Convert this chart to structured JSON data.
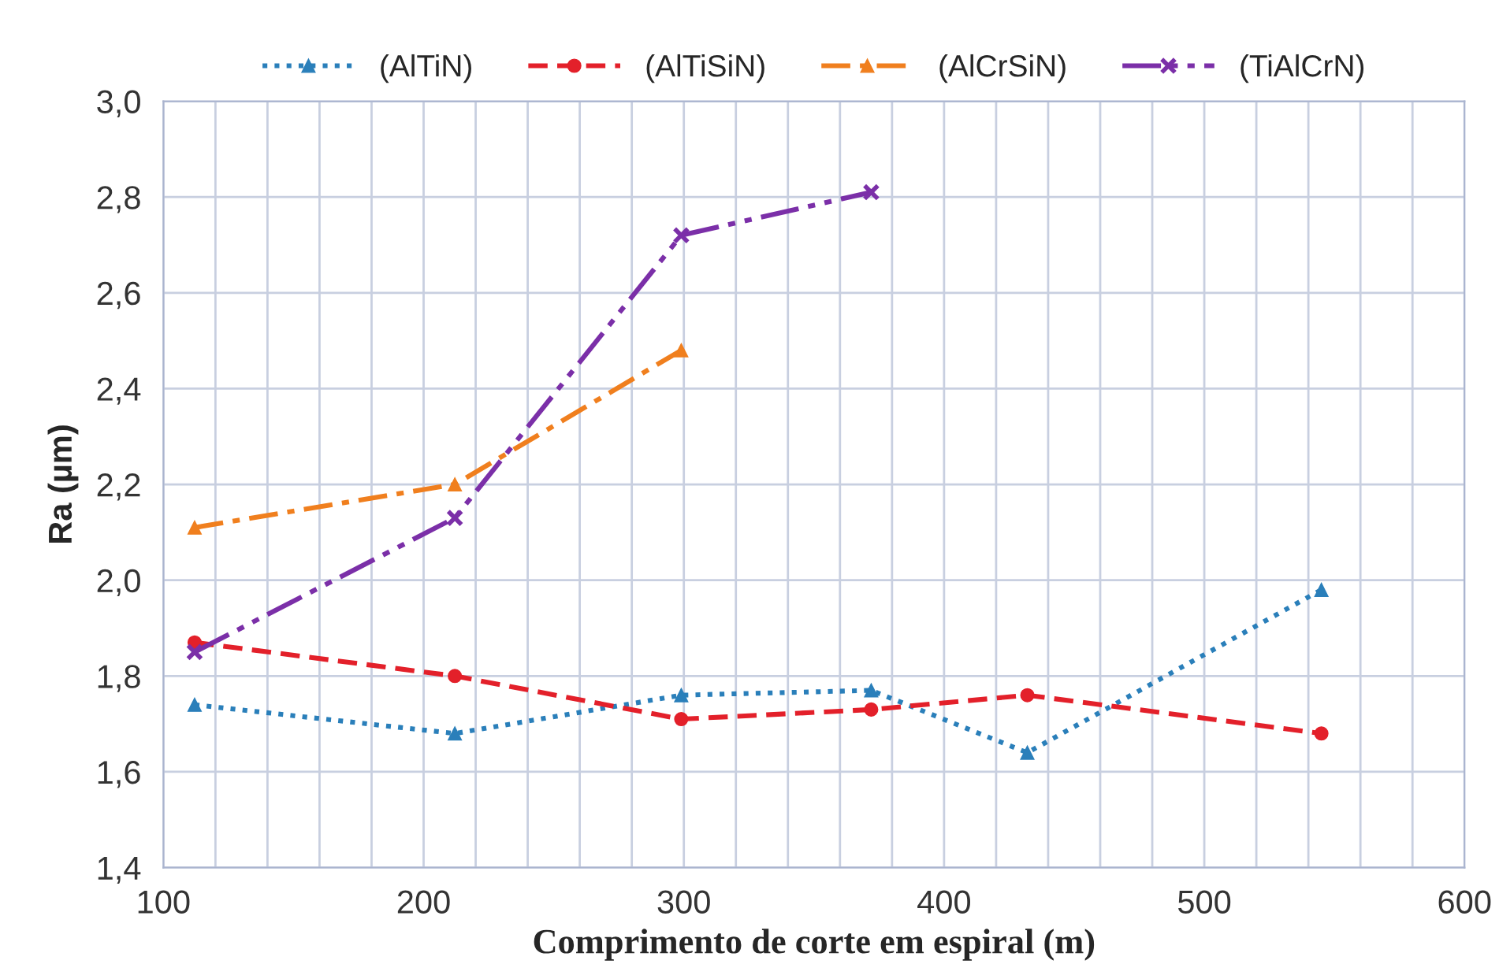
{
  "chart_data": {
    "type": "line",
    "xlabel": "Comprimento de corte em espiral (m)",
    "ylabel": "Ra (µm)",
    "series": [
      {
        "name": "(AlTiN)",
        "color": "#2a7fba",
        "marker": "triangle",
        "line_style": "dotted",
        "x": [
          112,
          212,
          299,
          372,
          432,
          545
        ],
        "values": [
          1.74,
          1.68,
          1.76,
          1.77,
          1.64,
          1.98
        ]
      },
      {
        "name": "(AlTiSiN)",
        "color": "#e3202a",
        "marker": "circle",
        "line_style": "dashed",
        "x": [
          112,
          212,
          299,
          372,
          432,
          545
        ],
        "values": [
          1.87,
          1.8,
          1.71,
          1.73,
          1.76,
          1.68
        ]
      },
      {
        "name": "(AlCrSiN)",
        "color": "#f07f1e",
        "marker": "triangle",
        "line_style": "dashdot",
        "x": [
          112,
          212,
          299
        ],
        "values": [
          2.11,
          2.2,
          2.48
        ]
      },
      {
        "name": "(TiAlCrN)",
        "color": "#7b2fa8",
        "marker": "cross",
        "line_style": "dashdotdot",
        "x": [
          112,
          212,
          299,
          372
        ],
        "values": [
          1.85,
          2.13,
          2.72,
          2.81
        ]
      }
    ],
    "xlim": [
      100,
      600
    ],
    "xticks": [
      100,
      {
        "value": 120,
        "label": null
      },
      {
        "value": 140,
        "label": null
      },
      {
        "value": 160,
        "label": null
      },
      {
        "value": 180,
        "label": null
      },
      200,
      {
        "value": 220,
        "label": null
      },
      {
        "value": 240,
        "label": null
      },
      {
        "value": 260,
        "label": null
      },
      {
        "value": 280,
        "label": null
      },
      300,
      {
        "value": 320,
        "label": null
      },
      {
        "value": 340,
        "label": null
      },
      {
        "value": 360,
        "label": null
      },
      {
        "value": 380,
        "label": null
      },
      400,
      {
        "value": 420,
        "label": null
      },
      {
        "value": 440,
        "label": null
      },
      {
        "value": 460,
        "label": null
      },
      {
        "value": 480,
        "label": null
      },
      500,
      {
        "value": 520,
        "label": null
      },
      {
        "value": 540,
        "label": null
      },
      {
        "value": 560,
        "label": null
      },
      {
        "value": 580,
        "label": null
      },
      600
    ],
    "ylim": [
      1.4,
      3.0
    ],
    "yticks": [
      {
        "value": 1.4,
        "label": "1,4"
      },
      {
        "value": 1.6,
        "label": "1,6"
      },
      {
        "value": 1.8,
        "label": "1,8"
      },
      {
        "value": 2.0,
        "label": "2,0"
      },
      {
        "value": 2.2,
        "label": "2,2"
      },
      {
        "value": 2.4,
        "label": "2,4"
      },
      {
        "value": 2.6,
        "label": "2,6"
      },
      {
        "value": 2.8,
        "label": "2,8"
      },
      {
        "value": 3.0,
        "label": "3,0"
      }
    ],
    "grid": true,
    "legend": "top"
  }
}
